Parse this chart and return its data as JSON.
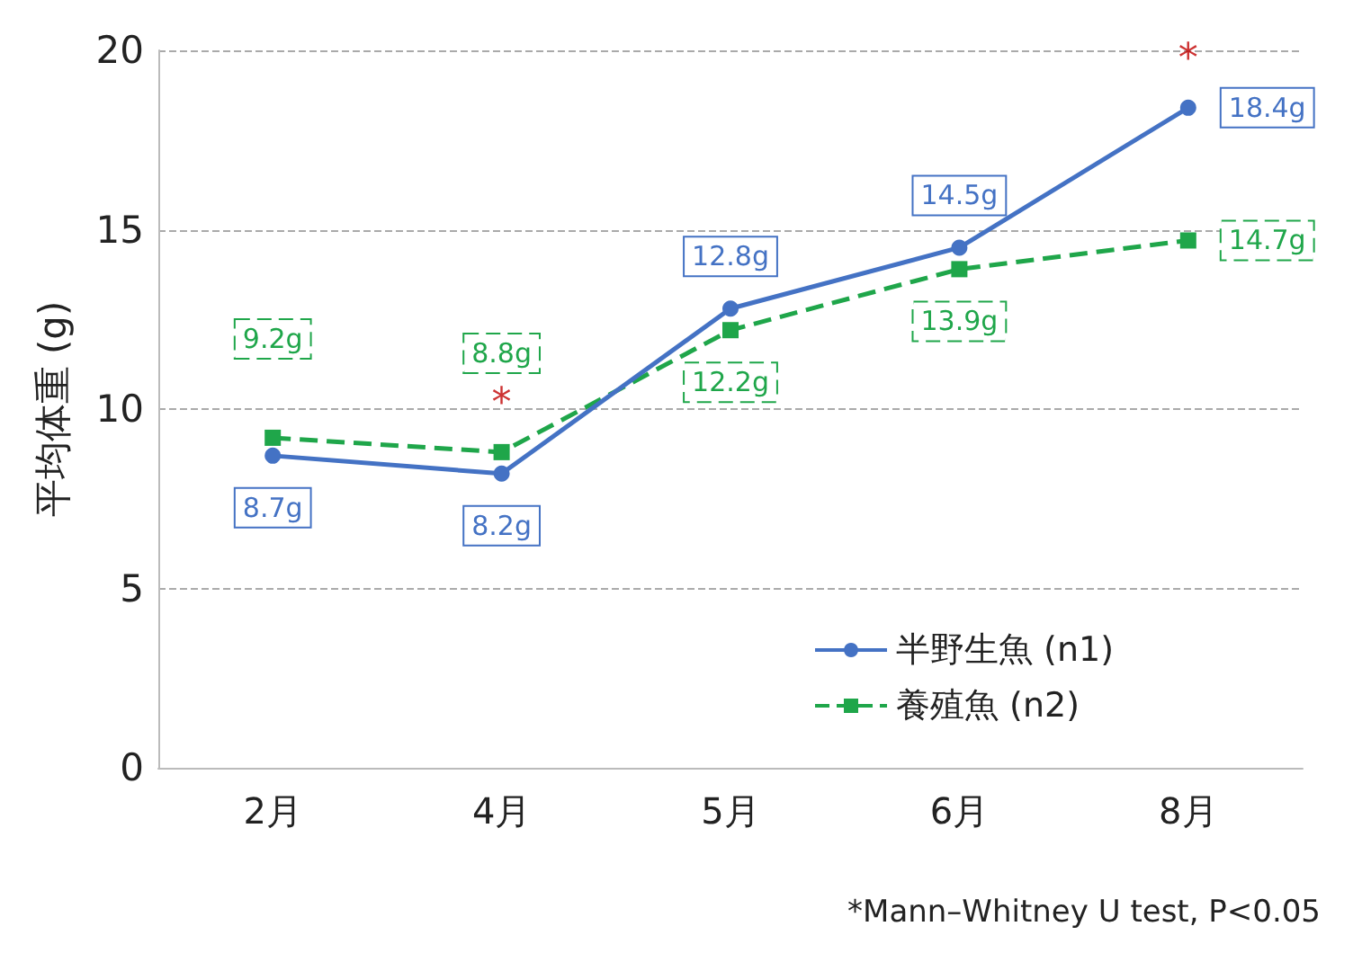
{
  "chart_data": {
    "type": "line",
    "ylabel": "平均体重 (g)",
    "categories": [
      "2月",
      "4月",
      "5月",
      "6月",
      "8月"
    ],
    "series": [
      {
        "name": "半野生魚 (n1)",
        "color": "#4472c4",
        "values": [
          8.7,
          8.2,
          12.8,
          14.5,
          18.4
        ],
        "value_labels": [
          "8.7g",
          "8.2g",
          "12.8g",
          "14.5g",
          "18.4g"
        ],
        "marker": "circle",
        "line_style": "solid"
      },
      {
        "name": "養殖魚 (n2)",
        "color": "#1fa64a",
        "values": [
          9.2,
          8.8,
          12.2,
          13.9,
          14.7
        ],
        "value_labels": [
          "9.2g",
          "8.8g",
          "12.2g",
          "13.9g",
          "14.7g"
        ],
        "marker": "square",
        "line_style": "dashed"
      }
    ],
    "ylim": [
      0,
      20
    ],
    "yticks": [
      0,
      5,
      10,
      15,
      20
    ],
    "grid": "y",
    "legend": "bottom right",
    "annotations": [
      {
        "text": "*",
        "x": "4月",
        "y": 8.8
      },
      {
        "text": "*",
        "x": "8月",
        "y": 18.4
      },
      "*Mann–Whitney U test, P<0.05"
    ]
  }
}
